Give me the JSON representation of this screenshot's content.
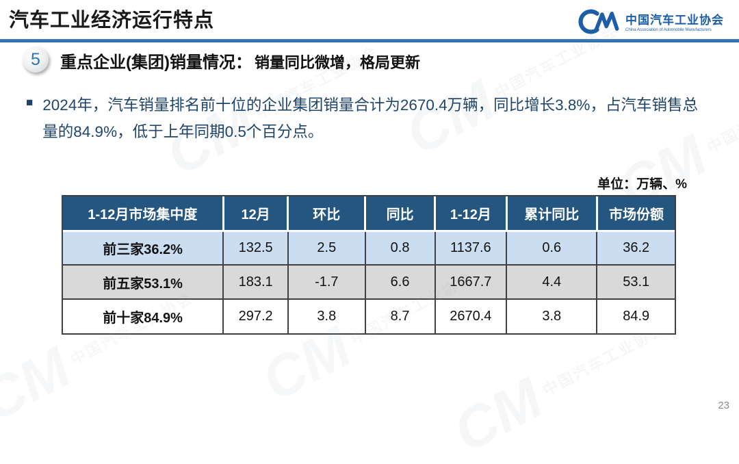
{
  "header": {
    "title": "汽车工业经济运行特点",
    "logo": {
      "mark": "CM",
      "name_cn": "中国汽车工业协会",
      "name_en": "China Association of Automobile Manufacturers"
    }
  },
  "section": {
    "number": "5",
    "title": "重点企业(集团)销量情况：",
    "subtitle": "销量同比微增，格局更新"
  },
  "bullet": {
    "marker": "■",
    "text": "2024年，汽车销量排名前十位的企业集团销量合计为2670.4万辆，同比增长3.8%，占汽车销售总\n量的84.9%，低于上年同期0.5个百分点。"
  },
  "unit_label": "单位：万辆、%",
  "chart_data": {
    "type": "table",
    "columns": [
      "1-12月市场集中度",
      "12月",
      "环比",
      "同比",
      "1-12月",
      "累计同比",
      "市场份额"
    ],
    "rows": [
      [
        "前三家36.2%",
        "132.5",
        "2.5",
        "0.8",
        "1137.6",
        "0.6",
        "36.2"
      ],
      [
        "前五家53.1%",
        "183.1",
        "-1.7",
        "6.6",
        "1667.7",
        "4.4",
        "53.1"
      ],
      [
        "前十家84.9%",
        "297.2",
        "3.8",
        "8.7",
        "2670.4",
        "3.8",
        "84.9"
      ]
    ]
  },
  "page_number": "23",
  "watermark": {
    "mark": "CM",
    "text": "中国汽车工业协会"
  },
  "colors": {
    "accent": "#2e75b6",
    "table_header": "#24567f",
    "row_blue": "#caddf1",
    "row_gray": "#d9d9d9",
    "body_text": "#20456b",
    "logo_blue": "#1c5fa8"
  }
}
